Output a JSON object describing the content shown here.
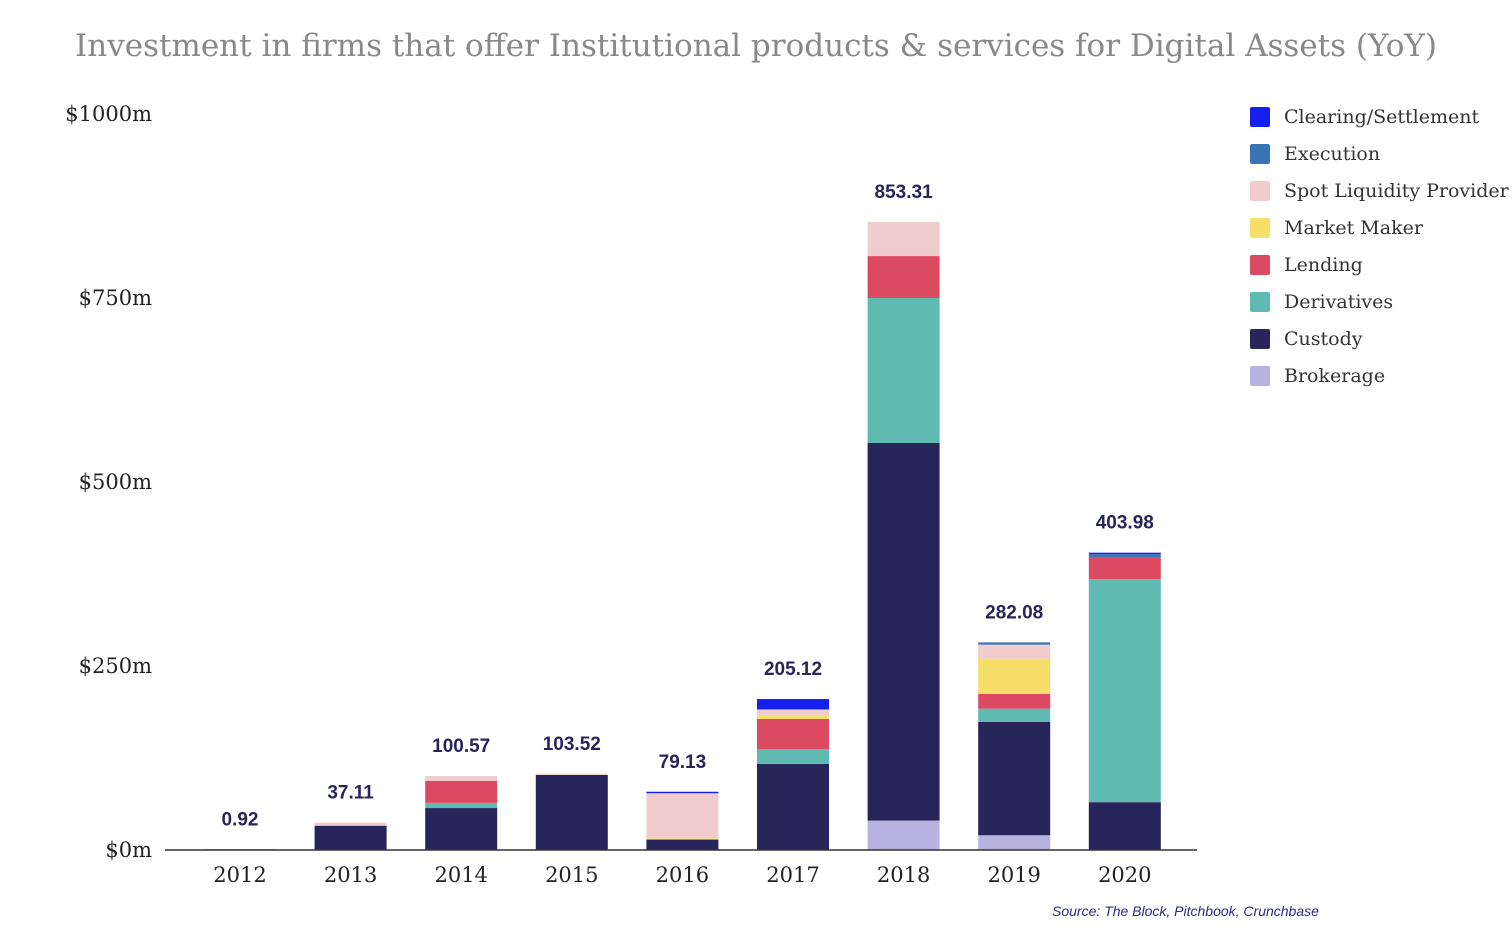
{
  "colors": {
    "Clearing/Settlement": "#1520f0",
    "Execution": "#3a74b4",
    "Spot Liquidity Provider": "#f0cccc",
    "Market Maker": "#f7de68",
    "Lending": "#dc4a62",
    "Derivatives": "#5fbab2",
    "Custody": "#27255a",
    "Brokerage": "#b8b2e0"
  },
  "chart_data": {
    "type": "bar",
    "stacked": true,
    "title": "Investment in firms that offer Institutional products & services for Digital Assets (YoY)",
    "source": "Source: The Block, Pitchbook, Crunchbase",
    "categories": [
      "2012",
      "2013",
      "2014",
      "2015",
      "2016",
      "2017",
      "2018",
      "2019",
      "2020"
    ],
    "ylim": [
      0,
      1000
    ],
    "yticks": [
      {
        "value": 0,
        "label": "$0m"
      },
      {
        "value": 250,
        "label": "$250m"
      },
      {
        "value": 500,
        "label": "$500m"
      },
      {
        "value": 750,
        "label": "$750m"
      },
      {
        "value": 1000,
        "label": "$1000m"
      }
    ],
    "totals": [
      "0.92",
      "37.11",
      "100.57",
      "103.52",
      "79.13",
      "205.12",
      "853.31",
      "282.08",
      "403.98"
    ],
    "legend_position": "top-right",
    "grid": false,
    "series": [
      {
        "name": "Brokerage",
        "values": [
          0,
          0,
          0,
          0,
          0,
          0,
          40,
          20,
          0
        ]
      },
      {
        "name": "Custody",
        "values": [
          0.92,
          33,
          57,
          102,
          14,
          117,
          513,
          154,
          65
        ]
      },
      {
        "name": "Derivatives",
        "values": [
          0,
          0,
          7,
          0,
          1,
          20,
          197,
          18,
          303
        ]
      },
      {
        "name": "Lending",
        "values": [
          0,
          0,
          30,
          0,
          0,
          41,
          57,
          20,
          30
        ]
      },
      {
        "name": "Market Maker",
        "values": [
          0,
          0,
          0,
          0,
          1,
          4,
          0,
          48,
          0
        ]
      },
      {
        "name": "Spot Liquidity Provider",
        "values": [
          0,
          4.11,
          6.57,
          1.52,
          61.13,
          9,
          46.31,
          19,
          0
        ]
      },
      {
        "name": "Execution",
        "values": [
          0,
          0,
          0,
          0,
          0,
          0,
          0,
          3.08,
          3.98
        ]
      },
      {
        "name": "Clearing/Settlement",
        "values": [
          0,
          0,
          0,
          0,
          2,
          14.12,
          0,
          0,
          2
        ]
      }
    ]
  }
}
